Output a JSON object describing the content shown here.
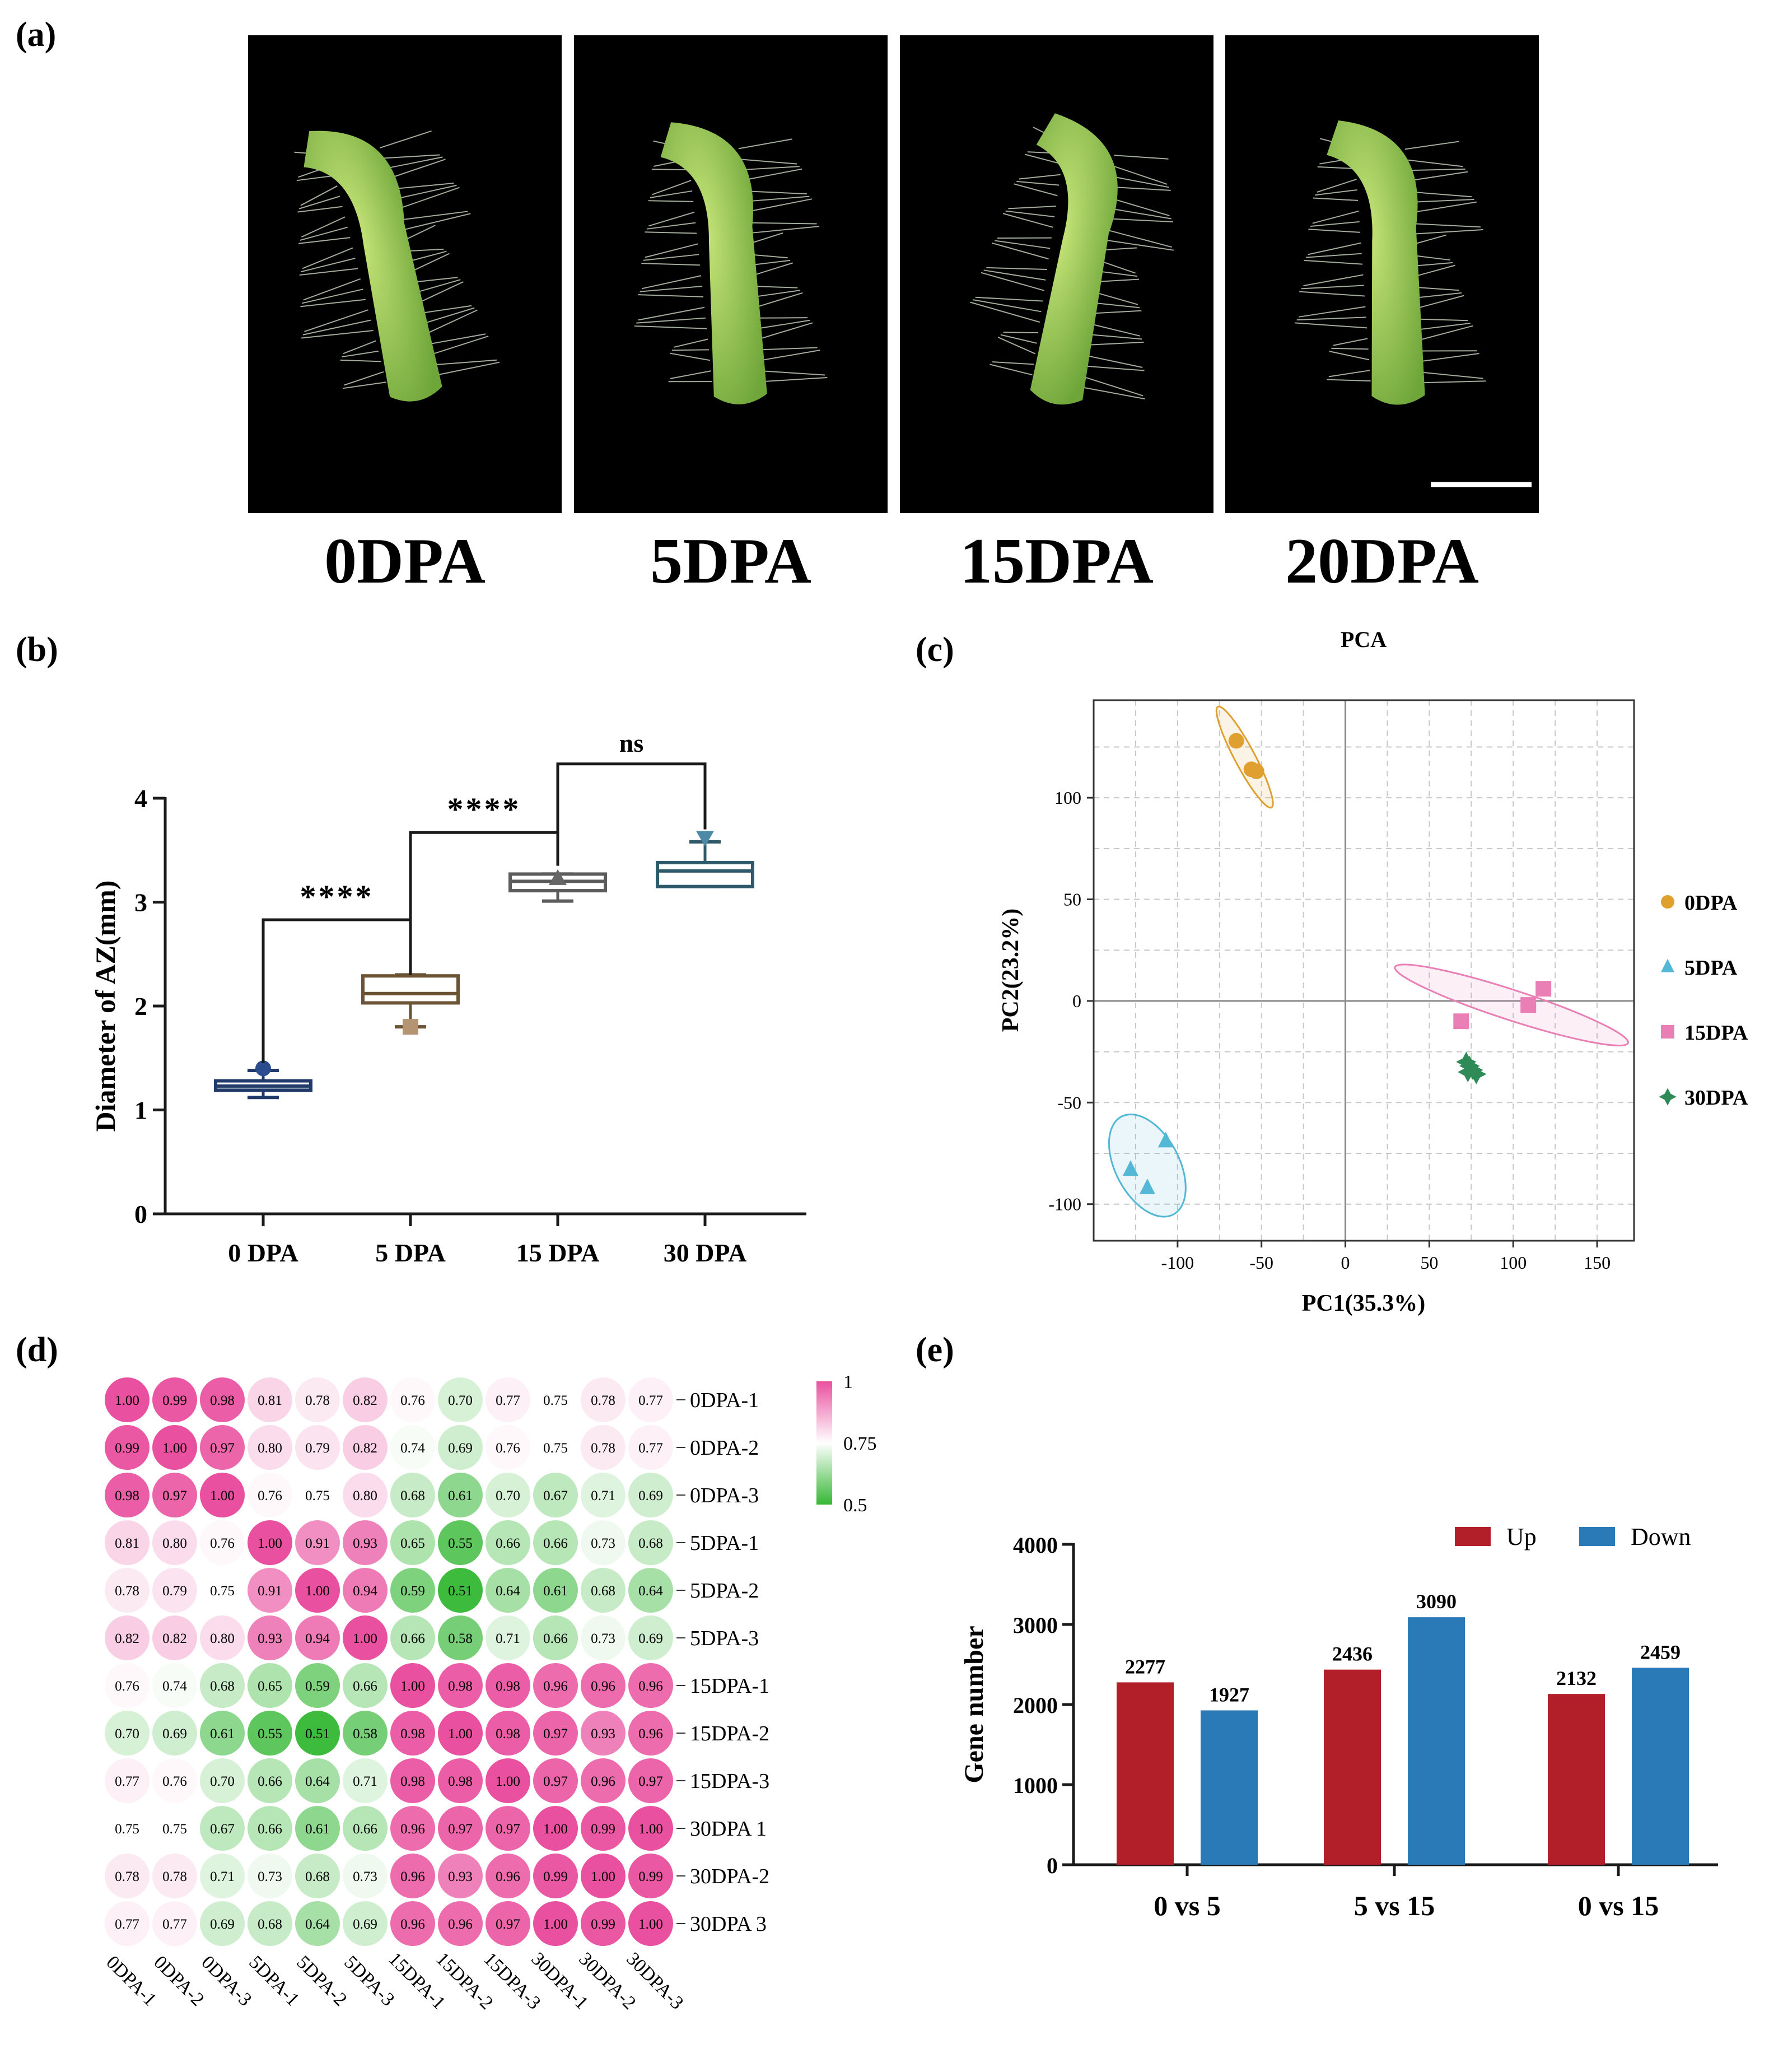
{
  "panels": {
    "a": "(a)",
    "b": "(b)",
    "c": "(c)",
    "d": "(d)",
    "e": "(e)"
  },
  "colors": {
    "photo_bg": "#000000",
    "stem_green": "#8fc453",
    "box_0dpa": "#1f3a6b",
    "box_5dpa": "#6b5333",
    "box_15dpa": "#5c5c5c",
    "box_30dpa": "#2f5a6b",
    "marker_0dpa": "#2b4d8f",
    "marker_5dpa": "#b59474",
    "marker_15dpa": "#666666",
    "marker_30dpa": "#4d8aa6",
    "pca_0dpa": "#e0a030",
    "pca_5dpa": "#52b8d6",
    "pca_15dpa": "#ea7fb6",
    "pca_30dpa": "#2e8b57",
    "heat_high": "#e9509f",
    "heat_mid": "#ffffff",
    "heat_low": "#35b835",
    "bar_up": "#b31f28",
    "bar_down": "#2a7ab8"
  },
  "photos": {
    "captions": [
      "0DPA",
      "5DPA",
      "15DPA",
      "20DPA"
    ],
    "icon": "abscission-zone-stem-photo"
  },
  "chart_data": [
    {
      "id": "b",
      "type": "box",
      "title": "",
      "xlabel": "",
      "ylabel": "Diameter  of  AZ(mm)",
      "ylim": [
        0,
        4
      ],
      "yticks": [
        0,
        1,
        2,
        3,
        4
      ],
      "categories": [
        "0 DPA",
        "5 DPA",
        "15 DPA",
        "30 DPA"
      ],
      "boxes": [
        {
          "min": 1.12,
          "q1": 1.19,
          "median": 1.23,
          "q3": 1.28,
          "max": 1.38,
          "point": 1.4,
          "marker": "circle"
        },
        {
          "min": 1.8,
          "q1": 2.03,
          "median": 2.12,
          "q3": 2.29,
          "max": 2.3,
          "point": 1.8,
          "marker": "square"
        },
        {
          "min": 3.01,
          "q1": 3.11,
          "median": 3.2,
          "q3": 3.27,
          "max": 3.27,
          "point": 3.23,
          "marker": "triangle-up"
        },
        {
          "min": 3.15,
          "q1": 3.15,
          "median": 3.3,
          "q3": 3.38,
          "max": 3.58,
          "point": 3.62,
          "marker": "triangle-down"
        }
      ],
      "significance": [
        {
          "from": 0,
          "to": 1,
          "label": "****",
          "y": 2.83
        },
        {
          "from": 1,
          "to": 2,
          "label": "****",
          "y": 3.67
        },
        {
          "from": 2,
          "to": 3,
          "label": "ns",
          "y": 4.33
        }
      ]
    },
    {
      "id": "c",
      "type": "scatter",
      "title": "PCA",
      "xlabel": "PC1(35.3%)",
      "ylabel": "PC2(23.2%)",
      "xlim": [
        -150,
        172
      ],
      "ylim": [
        -118,
        148
      ],
      "xticks": [
        -100,
        -50,
        0,
        50,
        100,
        150
      ],
      "yticks": [
        -100,
        -50,
        0,
        50,
        100
      ],
      "grid": true,
      "legend_position": "right",
      "series": [
        {
          "name": "0DPA",
          "marker": "circle",
          "points": [
            [
              -65,
              128
            ],
            [
              -56,
              114
            ],
            [
              -53,
              113
            ]
          ],
          "ellipse": {
            "cx": -60,
            "cy": 120,
            "rx": 34,
            "ry": 6,
            "angle": 62
          }
        },
        {
          "name": "5DPA",
          "marker": "triangle",
          "points": [
            [
              -107,
              -69
            ],
            [
              -128,
              -83
            ],
            [
              -118,
              -92
            ]
          ],
          "ellipse": {
            "cx": -118,
            "cy": -81,
            "rx": 33,
            "ry": 19,
            "angle": 62
          }
        },
        {
          "name": "15DPA",
          "marker": "square",
          "points": [
            [
              69,
              -10
            ],
            [
              109,
              -2
            ],
            [
              118,
              6
            ]
          ],
          "ellipse": {
            "cx": 99,
            "cy": -2,
            "rx": 73,
            "ry": 9,
            "angle": 18
          }
        },
        {
          "name": "30DPA",
          "marker": "diamond-cross",
          "points": [
            [
              72,
              -30
            ],
            [
              76,
              -34
            ],
            [
              74,
              -32
            ],
            [
              78,
              -36
            ],
            [
              73,
              -35
            ]
          ],
          "ellipse": null
        }
      ]
    },
    {
      "id": "d",
      "type": "heatmap",
      "labels": [
        "0DPA-1",
        "0DPA-2",
        "0DPA-3",
        "5DPA-1",
        "5DPA-2",
        "5DPA-3",
        "15DPA-1",
        "15DPA-2",
        "15DPA-3",
        "30DPA-1",
        "30DPA-2",
        "30DPA-3"
      ],
      "row_labels": [
        "0DPA-1",
        "0DPA-2",
        "0DPA-3",
        "5DPA-1",
        "5DPA-2",
        "5DPA-3",
        "15DPA-1",
        "15DPA-2",
        "15DPA-3",
        "30DPA 1",
        "30DPA-2",
        "30DPA 3"
      ],
      "colorbar_ticks": [
        1,
        0.75,
        0.5
      ],
      "colorbar_labels": [
        "1",
        "0.75",
        "0.5"
      ],
      "matrix": [
        [
          "1.00",
          "0.99",
          "0.98",
          "0.81",
          "0.78",
          "0.82",
          "0.76",
          "0.70",
          "0.77",
          "0.75",
          "0.78",
          "0.77"
        ],
        [
          "0.99",
          "1.00",
          "0.97",
          "0.80",
          "0.79",
          "0.82",
          "0.74",
          "0.69",
          "0.76",
          "0.75",
          "0.78",
          "0.77"
        ],
        [
          "0.98",
          "0.97",
          "1.00",
          "0.76",
          "0.75",
          "0.80",
          "0.68",
          "0.61",
          "0.70",
          "0.67",
          "0.71",
          "0.69"
        ],
        [
          "0.81",
          "0.80",
          "0.76",
          "1.00",
          "0.91",
          "0.93",
          "0.65",
          "0.55",
          "0.66",
          "0.66",
          "0.73",
          "0.68"
        ],
        [
          "0.78",
          "0.79",
          "0.75",
          "0.91",
          "1.00",
          "0.94",
          "0.59",
          "0.51",
          "0.64",
          "0.61",
          "0.68",
          "0.64"
        ],
        [
          "0.82",
          "0.82",
          "0.80",
          "0.93",
          "0.94",
          "1.00",
          "0.66",
          "0.58",
          "0.71",
          "0.66",
          "0.73",
          "0.69"
        ],
        [
          "0.76",
          "0.74",
          "0.68",
          "0.65",
          "0.59",
          "0.66",
          "1.00",
          "0.98",
          "0.98",
          "0.96",
          "0.96",
          "0.96"
        ],
        [
          "0.70",
          "0.69",
          "0.61",
          "0.55",
          "0.51",
          "0.58",
          "0.98",
          "1.00",
          "0.98",
          "0.97",
          "0.93",
          "0.96"
        ],
        [
          "0.77",
          "0.76",
          "0.70",
          "0.66",
          "0.64",
          "0.71",
          "0.98",
          "0.98",
          "1.00",
          "0.97",
          "0.96",
          "0.97"
        ],
        [
          "0.75",
          "0.75",
          "0.67",
          "0.66",
          "0.61",
          "0.66",
          "0.96",
          "0.97",
          "0.97",
          "1.00",
          "0.99",
          "1.00"
        ],
        [
          "0.78",
          "0.78",
          "0.71",
          "0.73",
          "0.68",
          "0.73",
          "0.96",
          "0.93",
          "0.96",
          "0.99",
          "1.00",
          "0.99"
        ],
        [
          "0.77",
          "0.77",
          "0.69",
          "0.68",
          "0.64",
          "0.69",
          "0.96",
          "0.96",
          "0.97",
          "1.00",
          "0.99",
          "1.00"
        ]
      ]
    },
    {
      "id": "e",
      "type": "bar",
      "title": "",
      "xlabel": "",
      "ylabel": "Gene number",
      "ylim": [
        0,
        4000
      ],
      "yticks": [
        0,
        1000,
        2000,
        3000,
        4000
      ],
      "categories": [
        "0 vs 5",
        "5 vs 15",
        "0 vs 15"
      ],
      "legend_position": "top-right",
      "series": [
        {
          "name": "Up",
          "values": [
            2277,
            2436,
            2132
          ]
        },
        {
          "name": "Down",
          "values": [
            1927,
            3090,
            2459
          ]
        }
      ]
    }
  ]
}
